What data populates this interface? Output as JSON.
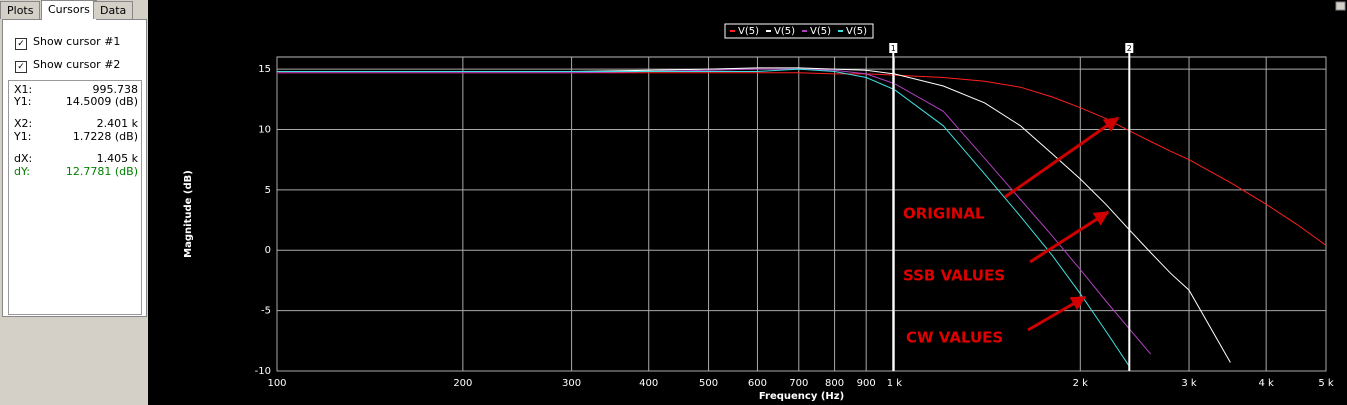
{
  "sidebar": {
    "tabs": [
      "Plots",
      "Cursors",
      "Data"
    ],
    "checkboxes": [
      "Show cursor #1",
      "Show cursor #2"
    ],
    "readouts": [
      [
        "X1:",
        "995.738"
      ],
      [
        "Y1:",
        "14.5009 (dB)"
      ],
      [
        "X2:",
        "2.401 k"
      ],
      [
        "Y1:",
        "1.7228 (dB)"
      ],
      [
        "dX:",
        "1.405 k"
      ],
      [
        "dY:",
        "12.7781 (dB)"
      ]
    ]
  },
  "chart_data": {
    "type": "line",
    "xlabel": "Frequency (Hz)",
    "ylabel": "Magnitude (dB)",
    "log_x": true,
    "grid": true,
    "xlim": [
      100,
      5000
    ],
    "ylim": [
      -10,
      16
    ],
    "xticks": [
      100,
      200,
      300,
      400,
      500,
      600,
      700,
      800,
      900,
      {
        "value": 1000,
        "label": "1 k"
      },
      {
        "value": 2000,
        "label": "2 k"
      },
      {
        "value": 3000,
        "label": "3 k"
      },
      {
        "value": 4000,
        "label": "4 k"
      },
      {
        "value": 5000,
        "label": "5 k"
      }
    ],
    "yticks": [
      -10,
      -5,
      0,
      5,
      10,
      15
    ],
    "x": [
      100,
      200,
      300,
      400,
      500,
      600,
      700,
      800,
      900,
      1000,
      1200,
      1400,
      1600,
      1800,
      2000,
      2200,
      2400,
      2600,
      2800,
      3000,
      3500,
      4000,
      4500,
      5000
    ],
    "series": [
      {
        "name": "V(5)",
        "color": "#ff2020",
        "values": [
          14.7,
          14.7,
          14.7,
          14.7,
          14.7,
          14.7,
          14.7,
          14.6,
          14.6,
          14.5,
          14.3,
          14.0,
          13.5,
          12.7,
          11.8,
          10.9,
          9.9,
          9.0,
          8.2,
          7.5,
          5.6,
          3.8,
          2.1,
          0.4
        ]
      },
      {
        "name": "V(5)",
        "color": "#ffffff",
        "values": [
          14.8,
          14.8,
          14.8,
          14.9,
          15.0,
          15.1,
          15.1,
          15.0,
          14.9,
          14.6,
          13.6,
          12.2,
          10.3,
          8.0,
          5.9,
          3.8,
          1.7,
          -0.2,
          -1.9,
          -3.3,
          -9.3,
          null,
          null,
          null
        ]
      },
      {
        "name": "V(5)",
        "color": "#b040c0",
        "values": [
          14.7,
          14.7,
          14.7,
          14.8,
          14.9,
          15.0,
          15.0,
          14.9,
          14.6,
          13.8,
          11.5,
          7.6,
          4.2,
          1.2,
          -1.6,
          -4.2,
          -6.5,
          -8.6,
          null,
          null,
          null,
          null,
          null,
          null
        ]
      },
      {
        "name": "V(5)",
        "color": "#40e0e0",
        "values": [
          14.8,
          14.8,
          14.8,
          14.8,
          14.8,
          14.8,
          15.0,
          14.8,
          14.3,
          13.3,
          10.3,
          6.3,
          2.8,
          -0.4,
          -3.6,
          -6.7,
          -9.6,
          null,
          null,
          null,
          null,
          null,
          null,
          null
        ]
      }
    ],
    "cursors": [
      {
        "label": "1",
        "x": 995.738
      },
      {
        "label": "2",
        "x": 2401
      }
    ],
    "annotations": [
      "ORIGINAL",
      "SSB VALUES",
      "CW VALUES"
    ]
  }
}
